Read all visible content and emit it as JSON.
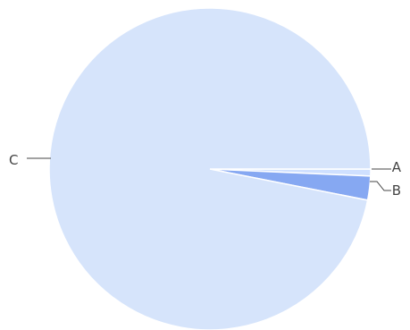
{
  "chart_data": {
    "type": "pie",
    "slices": [
      {
        "label": "A",
        "value": 0.7,
        "color": "#cfe0ff"
      },
      {
        "label": "B",
        "value": 2.4,
        "color": "#86a8f2"
      },
      {
        "label": "C",
        "value": 96.9,
        "color": "#d6e4fb"
      }
    ],
    "start_angle_deg": 0,
    "direction": "clockwise",
    "slice_border_color": "#ffffff",
    "legend": "none",
    "labels": "outside-with-leader-lines"
  }
}
